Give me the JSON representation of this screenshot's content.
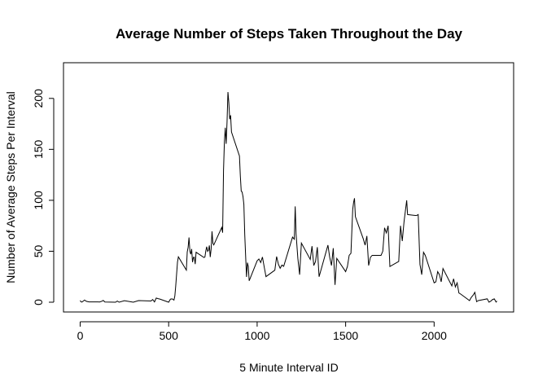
{
  "chart_data": {
    "type": "line",
    "title": "Average Number of Steps Taken Throughout the Day",
    "x_label": "5 Minute Interval ID",
    "y_label": "Number of Average Steps Per Interval",
    "color": "#000000",
    "xlim": [
      -94.2,
      2449.2
    ],
    "ylim": [
      -9.6,
      235
    ],
    "xticks": [
      0,
      500,
      1000,
      1500,
      2000
    ],
    "yticks": [
      0,
      50,
      100,
      150,
      200
    ],
    "x": [
      0,
      5,
      10,
      25,
      35,
      50,
      100,
      110,
      125,
      130,
      140,
      200,
      210,
      220,
      250,
      300,
      330,
      400,
      410,
      420,
      430,
      440,
      450,
      500,
      510,
      520,
      530,
      535,
      540,
      550,
      555,
      600,
      605,
      610,
      615,
      620,
      625,
      630,
      635,
      640,
      645,
      650,
      655,
      700,
      705,
      710,
      715,
      720,
      725,
      730,
      735,
      740,
      745,
      750,
      755,
      800,
      805,
      810,
      815,
      820,
      825,
      830,
      835,
      840,
      845,
      850,
      855,
      900,
      905,
      910,
      915,
      920,
      925,
      930,
      935,
      940,
      945,
      950,
      955,
      1000,
      1010,
      1020,
      1030,
      1040,
      1050,
      1100,
      1110,
      1120,
      1130,
      1140,
      1150,
      1200,
      1210,
      1215,
      1220,
      1230,
      1240,
      1250,
      1300,
      1310,
      1320,
      1330,
      1340,
      1350,
      1400,
      1410,
      1420,
      1430,
      1440,
      1450,
      1500,
      1510,
      1520,
      1530,
      1540,
      1545,
      1550,
      1555,
      1600,
      1610,
      1620,
      1630,
      1640,
      1650,
      1700,
      1710,
      1720,
      1730,
      1740,
      1750,
      1800,
      1810,
      1820,
      1830,
      1845,
      1850,
      1900,
      1910,
      1920,
      1930,
      1940,
      1950,
      2000,
      2010,
      2020,
      2030,
      2040,
      2050,
      2100,
      2110,
      2120,
      2130,
      2140,
      2150,
      2200,
      2210,
      2220,
      2230,
      2240,
      2250,
      2300,
      2310,
      2320,
      2330,
      2340,
      2350,
      2355
    ],
    "values": [
      1.7,
      0.3,
      0.1,
      2.1,
      0.9,
      0.3,
      0.3,
      0.2,
      1.1,
      1.8,
      0.2,
      0,
      1.1,
      0,
      1.5,
      0,
      1.6,
      1.2,
      2.6,
      0.3,
      4.1,
      3.5,
      3.1,
      0,
      3,
      3.3,
      2.1,
      6.1,
      16,
      39.5,
      44.5,
      31.5,
      49.3,
      53.8,
      63.5,
      50,
      47.1,
      52.2,
      39.3,
      44,
      44.2,
      37.4,
      49,
      43.8,
      44.4,
      50.5,
      54.5,
      49.9,
      51,
      55.7,
      44.3,
      52.3,
      69.5,
      57.8,
      56.2,
      73.4,
      68.2,
      129.4,
      157.5,
      171.2,
      155.4,
      177.3,
      206.2,
      195.9,
      179.6,
      183.4,
      167,
      143.5,
      124,
      109.1,
      108.1,
      103.7,
      96,
      66.2,
      45.2,
      24.8,
      38.8,
      35,
      21,
      40.6,
      42.4,
      38.9,
      44.3,
      34.5,
      25.1,
      31.4,
      44.8,
      37.3,
      33.3,
      36.5,
      35.2,
      63.9,
      61.8,
      94,
      67,
      43,
      27,
      58,
      42,
      55,
      36,
      40,
      54,
      25,
      56,
      44,
      36,
      53,
      17,
      43,
      30,
      35,
      46,
      48,
      91,
      98,
      102,
      84,
      62,
      56,
      65,
      36,
      44,
      46,
      46,
      50,
      73,
      68,
      75,
      35,
      40,
      75,
      60,
      79,
      100,
      86,
      85,
      86,
      37,
      27,
      49,
      46,
      19,
      20,
      30,
      27,
      20,
      33,
      16,
      23,
      15,
      19,
      9,
      8,
      1.6,
      4.8,
      6.8,
      9.7,
      0.5,
      1.6,
      3.3,
      0,
      1,
      2.6,
      3.3,
      0.2,
      1.1
    ]
  }
}
